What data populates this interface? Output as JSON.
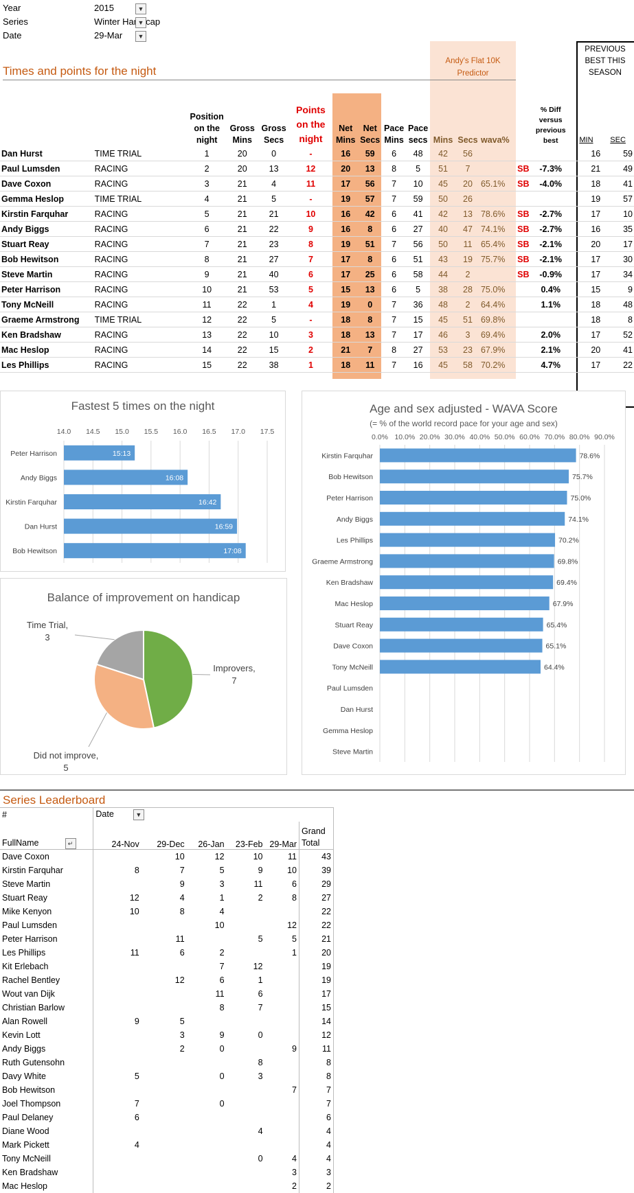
{
  "filters": [
    {
      "label": "Year",
      "value": "2015"
    },
    {
      "label": "Series",
      "value": "Winter Handicap"
    },
    {
      "label": "Date",
      "value": "29-Mar"
    }
  ],
  "results": {
    "title": "Times and points for the night",
    "predictor_header": "Andy's Flat 10K Predictor",
    "previous_best_header": "PREVIOUS BEST THIS SEASON",
    "headers": {
      "position": "Position on the night",
      "gross_mins": "Gross Mins",
      "gross_secs": "Gross Secs",
      "points": "Points on the night",
      "net_mins": "Net Mins",
      "net_secs": "Net Secs",
      "pace_mins": "Pace Mins",
      "pace_secs": "Pace secs",
      "pred_mins": "Mins",
      "pred_secs": "Secs",
      "wava": "wava%",
      "diff": "% Diff versus previous best",
      "min": "MIN",
      "sec": "SEC"
    },
    "rows": [
      {
        "name": "Dan Hurst",
        "type": "TIME TRIAL",
        "pos": "1",
        "gmin": "20",
        "gsec": "0",
        "pts": "-",
        "nmin": "16",
        "nsec": "59",
        "pmin": "6",
        "psec": "48",
        "pm": "42",
        "ps": "56",
        "wava": "",
        "sb": "",
        "diff": "",
        "bmin": "16",
        "bsec": "59"
      },
      {
        "name": "Paul Lumsden",
        "type": "RACING",
        "pos": "2",
        "gmin": "20",
        "gsec": "13",
        "pts": "12",
        "nmin": "20",
        "nsec": "13",
        "pmin": "8",
        "psec": "5",
        "pm": "51",
        "ps": "7",
        "wava": "",
        "sb": "SB",
        "diff": "-7.3%",
        "bmin": "21",
        "bsec": "49"
      },
      {
        "name": "Dave Coxon",
        "type": "RACING",
        "pos": "3",
        "gmin": "21",
        "gsec": "4",
        "pts": "11",
        "nmin": "17",
        "nsec": "56",
        "pmin": "7",
        "psec": "10",
        "pm": "45",
        "ps": "20",
        "wava": "65.1%",
        "sb": "SB",
        "diff": "-4.0%",
        "bmin": "18",
        "bsec": "41"
      },
      {
        "name": "Gemma Heslop",
        "type": "TIME TRIAL",
        "pos": "4",
        "gmin": "21",
        "gsec": "5",
        "pts": "-",
        "nmin": "19",
        "nsec": "57",
        "pmin": "7",
        "psec": "59",
        "pm": "50",
        "ps": "26",
        "wava": "",
        "sb": "",
        "diff": "",
        "bmin": "19",
        "bsec": "57"
      },
      {
        "name": "Kirstin Farquhar",
        "type": "RACING",
        "pos": "5",
        "gmin": "21",
        "gsec": "21",
        "pts": "10",
        "nmin": "16",
        "nsec": "42",
        "pmin": "6",
        "psec": "41",
        "pm": "42",
        "ps": "13",
        "wava": "78.6%",
        "sb": "SB",
        "diff": "-2.7%",
        "bmin": "17",
        "bsec": "10"
      },
      {
        "name": "Andy Biggs",
        "type": "RACING",
        "pos": "6",
        "gmin": "21",
        "gsec": "22",
        "pts": "9",
        "nmin": "16",
        "nsec": "8",
        "pmin": "6",
        "psec": "27",
        "pm": "40",
        "ps": "47",
        "wava": "74.1%",
        "sb": "SB",
        "diff": "-2.7%",
        "bmin": "16",
        "bsec": "35"
      },
      {
        "name": "Stuart Reay",
        "type": "RACING",
        "pos": "7",
        "gmin": "21",
        "gsec": "23",
        "pts": "8",
        "nmin": "19",
        "nsec": "51",
        "pmin": "7",
        "psec": "56",
        "pm": "50",
        "ps": "11",
        "wava": "65.4%",
        "sb": "SB",
        "diff": "-2.1%",
        "bmin": "20",
        "bsec": "17"
      },
      {
        "name": "Bob Hewitson",
        "type": "RACING",
        "pos": "8",
        "gmin": "21",
        "gsec": "27",
        "pts": "7",
        "nmin": "17",
        "nsec": "8",
        "pmin": "6",
        "psec": "51",
        "pm": "43",
        "ps": "19",
        "wava": "75.7%",
        "sb": "SB",
        "diff": "-2.1%",
        "bmin": "17",
        "bsec": "30"
      },
      {
        "name": "Steve Martin",
        "type": "RACING",
        "pos": "9",
        "gmin": "21",
        "gsec": "40",
        "pts": "6",
        "nmin": "17",
        "nsec": "25",
        "pmin": "6",
        "psec": "58",
        "pm": "44",
        "ps": "2",
        "wava": "",
        "sb": "SB",
        "diff": "-0.9%",
        "bmin": "17",
        "bsec": "34"
      },
      {
        "name": "Peter Harrison",
        "type": "RACING",
        "pos": "10",
        "gmin": "21",
        "gsec": "53",
        "pts": "5",
        "nmin": "15",
        "nsec": "13",
        "pmin": "6",
        "psec": "5",
        "pm": "38",
        "ps": "28",
        "wava": "75.0%",
        "sb": "",
        "diff": "0.4%",
        "bmin": "15",
        "bsec": "9"
      },
      {
        "name": "Tony McNeill",
        "type": "RACING",
        "pos": "11",
        "gmin": "22",
        "gsec": "1",
        "pts": "4",
        "nmin": "19",
        "nsec": "0",
        "pmin": "7",
        "psec": "36",
        "pm": "48",
        "ps": "2",
        "wava": "64.4%",
        "sb": "",
        "diff": "1.1%",
        "bmin": "18",
        "bsec": "48"
      },
      {
        "name": "Graeme Armstrong",
        "type": "TIME TRIAL",
        "pos": "12",
        "gmin": "22",
        "gsec": "5",
        "pts": "-",
        "nmin": "18",
        "nsec": "8",
        "pmin": "7",
        "psec": "15",
        "pm": "45",
        "ps": "51",
        "wava": "69.8%",
        "sb": "",
        "diff": "",
        "bmin": "18",
        "bsec": "8"
      },
      {
        "name": "Ken Bradshaw",
        "type": "RACING",
        "pos": "13",
        "gmin": "22",
        "gsec": "10",
        "pts": "3",
        "nmin": "18",
        "nsec": "13",
        "pmin": "7",
        "psec": "17",
        "pm": "46",
        "ps": "3",
        "wava": "69.4%",
        "sb": "",
        "diff": "2.0%",
        "bmin": "17",
        "bsec": "52"
      },
      {
        "name": "Mac Heslop",
        "type": "RACING",
        "pos": "14",
        "gmin": "22",
        "gsec": "15",
        "pts": "2",
        "nmin": "21",
        "nsec": "7",
        "pmin": "8",
        "psec": "27",
        "pm": "53",
        "ps": "23",
        "wava": "67.9%",
        "sb": "",
        "diff": "2.1%",
        "bmin": "20",
        "bsec": "41"
      },
      {
        "name": "Les Phillips",
        "type": "RACING",
        "pos": "15",
        "gmin": "22",
        "gsec": "38",
        "pts": "1",
        "nmin": "18",
        "nsec": "11",
        "pmin": "7",
        "psec": "16",
        "pm": "45",
        "ps": "58",
        "wava": "70.2%",
        "sb": "",
        "diff": "4.7%",
        "bmin": "17",
        "bsec": "22"
      }
    ]
  },
  "chart_data": [
    {
      "type": "bar",
      "title": "Fastest 5 times on the night",
      "categories": [
        "Peter Harrison",
        "Andy Biggs",
        "Kirstin Farquhar",
        "Dan Hurst",
        "Bob Hewitson"
      ],
      "values": [
        15.22,
        16.13,
        16.7,
        16.98,
        17.13
      ],
      "data_labels": [
        "15:13",
        "16:08",
        "16:42",
        "16:59",
        "17:08"
      ],
      "xlim": [
        14.0,
        17.5
      ],
      "ticks": [
        "14.0",
        "14.5",
        "15.0",
        "15.5",
        "16.0",
        "16.5",
        "17.0",
        "17.5"
      ],
      "color": "#5b9bd5"
    },
    {
      "type": "bar",
      "title": "Age and sex adjusted - WAVA Score",
      "subtitle": "(= % of the world record pace for your age and sex)",
      "categories": [
        "Kirstin Farquhar",
        "Bob Hewitson",
        "Peter Harrison",
        "Andy Biggs",
        "Les Phillips",
        "Graeme Armstrong",
        "Ken Bradshaw",
        "Mac Heslop",
        "Stuart Reay",
        "Dave Coxon",
        "Tony McNeill",
        "Paul Lumsden",
        "Dan Hurst",
        "Gemma Heslop",
        "Steve Martin"
      ],
      "values": [
        78.6,
        75.7,
        75.0,
        74.1,
        70.2,
        69.8,
        69.4,
        67.9,
        65.4,
        65.1,
        64.4,
        null,
        null,
        null,
        null
      ],
      "data_labels": [
        "78.6%",
        "75.7%",
        "75.0%",
        "74.1%",
        "70.2%",
        "69.8%",
        "69.4%",
        "67.9%",
        "65.4%",
        "65.1%",
        "64.4%",
        "",
        "",
        "",
        ""
      ],
      "xlim": [
        0,
        90
      ],
      "ticks": [
        "0.0%",
        "10.0%",
        "20.0%",
        "30.0%",
        "40.0%",
        "50.0%",
        "60.0%",
        "70.0%",
        "80.0%",
        "90.0%"
      ],
      "color": "#5b9bd5"
    },
    {
      "type": "pie",
      "title": "Balance of improvement on handicap",
      "slices": [
        {
          "label": "Improvers, 7",
          "value": 7,
          "color": "#70ad47"
        },
        {
          "label": "Did not improve, 5",
          "value": 5,
          "color": "#f4b183"
        },
        {
          "label": "Time Trial, 3",
          "value": 3,
          "color": "#a5a5a5"
        }
      ]
    }
  ],
  "leaderboard": {
    "title": "Series Leaderboard",
    "hash": "#",
    "date_label": "Date",
    "fullname_label": "FullName",
    "dates": [
      "24-Nov",
      "29-Dec",
      "26-Jan",
      "23-Feb",
      "29-Mar"
    ],
    "grand_total_label": "Grand Total",
    "rows": [
      {
        "name": "Dave Coxon",
        "v": [
          "",
          "10",
          "12",
          "10",
          "11"
        ],
        "total": "43"
      },
      {
        "name": "Kirstin Farquhar",
        "v": [
          "8",
          "7",
          "5",
          "9",
          "10"
        ],
        "total": "39"
      },
      {
        "name": "Steve Martin",
        "v": [
          "",
          "9",
          "3",
          "11",
          "6"
        ],
        "total": "29"
      },
      {
        "name": "Stuart Reay",
        "v": [
          "12",
          "4",
          "1",
          "2",
          "8"
        ],
        "total": "27"
      },
      {
        "name": "Mike Kenyon",
        "v": [
          "10",
          "8",
          "4",
          "",
          ""
        ],
        "total": "22"
      },
      {
        "name": "Paul Lumsden",
        "v": [
          "",
          "",
          "10",
          "",
          "12"
        ],
        "total": "22"
      },
      {
        "name": "Peter Harrison",
        "v": [
          "",
          "11",
          "",
          "5",
          "5"
        ],
        "total": "21"
      },
      {
        "name": "Les Phillips",
        "v": [
          "11",
          "6",
          "2",
          "",
          "1"
        ],
        "total": "20"
      },
      {
        "name": "Kit Erlebach",
        "v": [
          "",
          "",
          "7",
          "12",
          ""
        ],
        "total": "19"
      },
      {
        "name": "Rachel Bentley",
        "v": [
          "",
          "12",
          "6",
          "1",
          ""
        ],
        "total": "19"
      },
      {
        "name": "Wout van Dijk",
        "v": [
          "",
          "",
          "11",
          "6",
          ""
        ],
        "total": "17"
      },
      {
        "name": "Christian Barlow",
        "v": [
          "",
          "",
          "8",
          "7",
          ""
        ],
        "total": "15"
      },
      {
        "name": "Alan Rowell",
        "v": [
          "9",
          "5",
          "",
          "",
          ""
        ],
        "total": "14"
      },
      {
        "name": "Kevin Lott",
        "v": [
          "",
          "3",
          "9",
          "0",
          ""
        ],
        "total": "12"
      },
      {
        "name": "Andy Biggs",
        "v": [
          "",
          "2",
          "0",
          "",
          "9"
        ],
        "total": "11"
      },
      {
        "name": "Ruth Gutensohn",
        "v": [
          "",
          "",
          "",
          "8",
          ""
        ],
        "total": "8"
      },
      {
        "name": "Davy White",
        "v": [
          "5",
          "",
          "0",
          "3",
          ""
        ],
        "total": "8"
      },
      {
        "name": "Bob Hewitson",
        "v": [
          "",
          "",
          "",
          "",
          "7"
        ],
        "total": "7"
      },
      {
        "name": "Joel Thompson",
        "v": [
          "7",
          "",
          "0",
          "",
          ""
        ],
        "total": "7"
      },
      {
        "name": "Paul Delaney",
        "v": [
          "6",
          "",
          "",
          "",
          ""
        ],
        "total": "6"
      },
      {
        "name": "Diane Wood",
        "v": [
          "",
          "",
          "",
          "4",
          ""
        ],
        "total": "4"
      },
      {
        "name": "Mark Pickett",
        "v": [
          "4",
          "",
          "",
          "",
          ""
        ],
        "total": "4"
      },
      {
        "name": "Tony McNeill",
        "v": [
          "",
          "",
          "",
          "0",
          "4"
        ],
        "total": "4"
      },
      {
        "name": "Ken Bradshaw",
        "v": [
          "",
          "",
          "",
          "",
          "3"
        ],
        "total": "3"
      },
      {
        "name": "Mac Heslop",
        "v": [
          "",
          "",
          "",
          "",
          "2"
        ],
        "total": "2"
      }
    ]
  }
}
